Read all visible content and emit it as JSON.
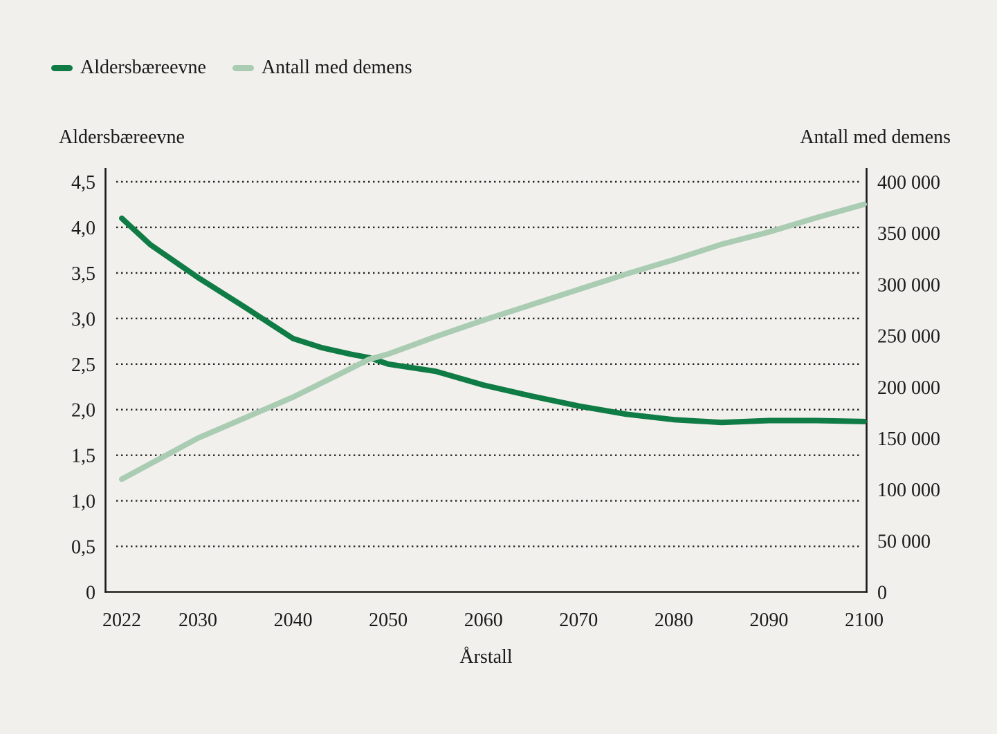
{
  "colors": {
    "background": "#f2f0ec",
    "text": "#1a1a1a",
    "grid": "#222222",
    "series_dark_green": "#107c45",
    "series_light_green": "#a9ccb3"
  },
  "legend": {
    "items": [
      {
        "label": "Aldersbæreevne",
        "color": "#107c45"
      },
      {
        "label": "Antall med demens",
        "color": "#a9ccb3"
      }
    ]
  },
  "chart_data": {
    "type": "line",
    "title": "",
    "grid": {
      "horizontal": true,
      "style": "dotted"
    },
    "x_axis": {
      "title": "Årstall",
      "range": [
        2022,
        2100
      ],
      "tick_values": [
        2022,
        2030,
        2040,
        2050,
        2060,
        2070,
        2080,
        2090,
        2100
      ],
      "tick_labels": [
        "2022",
        "2030",
        "2040",
        "2050",
        "2060",
        "2070",
        "2080",
        "2090",
        "2100"
      ]
    },
    "left_axis": {
      "title": "Aldersbæreevne",
      "range": [
        0,
        4.5
      ],
      "tick_values": [
        4.5,
        4.0,
        3.5,
        3.0,
        2.5,
        2.0,
        1.5,
        1.0,
        0.5,
        0
      ],
      "tick_labels": [
        "4,5",
        "4,0",
        "3,5",
        "3,0",
        "2,5",
        "2,0",
        "1,5",
        "1,0",
        "0,5",
        "0"
      ]
    },
    "right_axis": {
      "title": "Antall med demens",
      "range": [
        0,
        400000
      ],
      "tick_values": [
        400000,
        350000,
        300000,
        250000,
        200000,
        150000,
        100000,
        50000,
        0
      ],
      "tick_labels": [
        "400 000",
        "350 000",
        "300 000",
        "250 000",
        "200 000",
        "150 000",
        "100 000",
        "50 000",
        "0"
      ]
    },
    "series": [
      {
        "name": "Aldersbæreevne",
        "axis": "left",
        "color": "#107c45",
        "x": [
          2022,
          2025,
          2030,
          2035,
          2040,
          2043,
          2046,
          2048,
          2050,
          2055,
          2060,
          2065,
          2070,
          2075,
          2080,
          2085,
          2090,
          2095,
          2100
        ],
        "y": [
          4.1,
          3.81,
          3.45,
          3.12,
          2.78,
          2.68,
          2.61,
          2.57,
          2.5,
          2.42,
          2.27,
          2.15,
          2.04,
          1.95,
          1.89,
          1.86,
          1.88,
          1.88,
          1.87
        ]
      },
      {
        "name": "Antall med demens",
        "axis": "right",
        "color": "#a9ccb3",
        "x": [
          2022,
          2025,
          2030,
          2035,
          2040,
          2045,
          2048,
          2050,
          2055,
          2060,
          2065,
          2070,
          2075,
          2080,
          2085,
          2090,
          2095,
          2100
        ],
        "y": [
          110000,
          125000,
          150000,
          170000,
          190000,
          213000,
          227000,
          232000,
          249000,
          265000,
          280000,
          295000,
          310000,
          324000,
          339000,
          351000,
          365000,
          378000
        ]
      }
    ]
  }
}
